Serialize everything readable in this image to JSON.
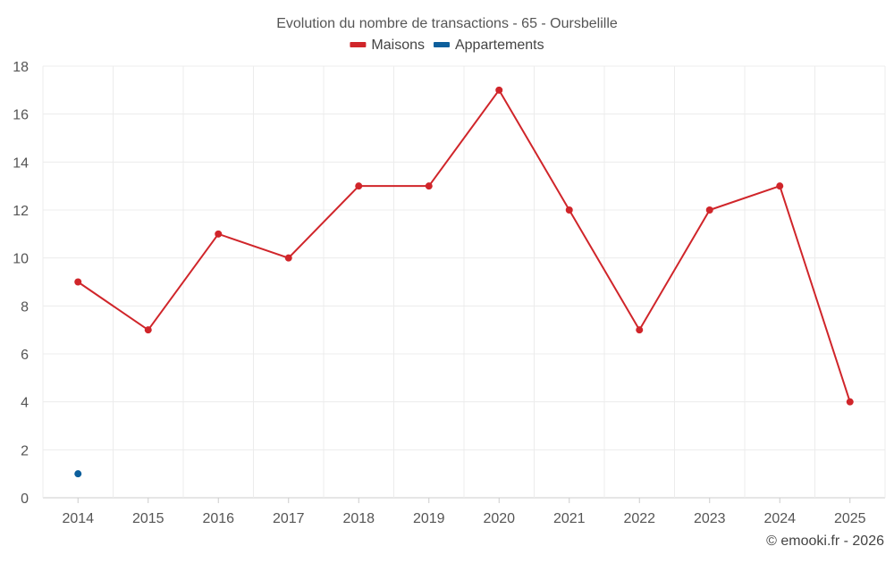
{
  "colors": {
    "maisons": "#d0252a",
    "appartements": "#0d5f9c",
    "grid": "#ececec",
    "text": "#555555"
  },
  "chart_data": {
    "type": "line",
    "title": "Evolution du nombre de transactions - 65 - Oursbelille",
    "xlabel": "",
    "ylabel": "",
    "categories": [
      "2014",
      "2015",
      "2016",
      "2017",
      "2018",
      "2019",
      "2020",
      "2021",
      "2022",
      "2023",
      "2024",
      "2025"
    ],
    "ylim": [
      0,
      18
    ],
    "yticks": [
      "0",
      "2",
      "4",
      "6",
      "8",
      "10",
      "12",
      "14",
      "16",
      "18"
    ],
    "grid": true,
    "legend_position": "top-center",
    "series": [
      {
        "name": "Maisons",
        "color_key": "maisons",
        "values": [
          9,
          7,
          11,
          10,
          13,
          13,
          17,
          12,
          7,
          12,
          13,
          4
        ]
      },
      {
        "name": "Appartements",
        "color_key": "appartements",
        "values": [
          1,
          null,
          null,
          null,
          null,
          null,
          null,
          null,
          null,
          null,
          null,
          null
        ]
      }
    ],
    "credit": "© emooki.fr - 2026"
  }
}
